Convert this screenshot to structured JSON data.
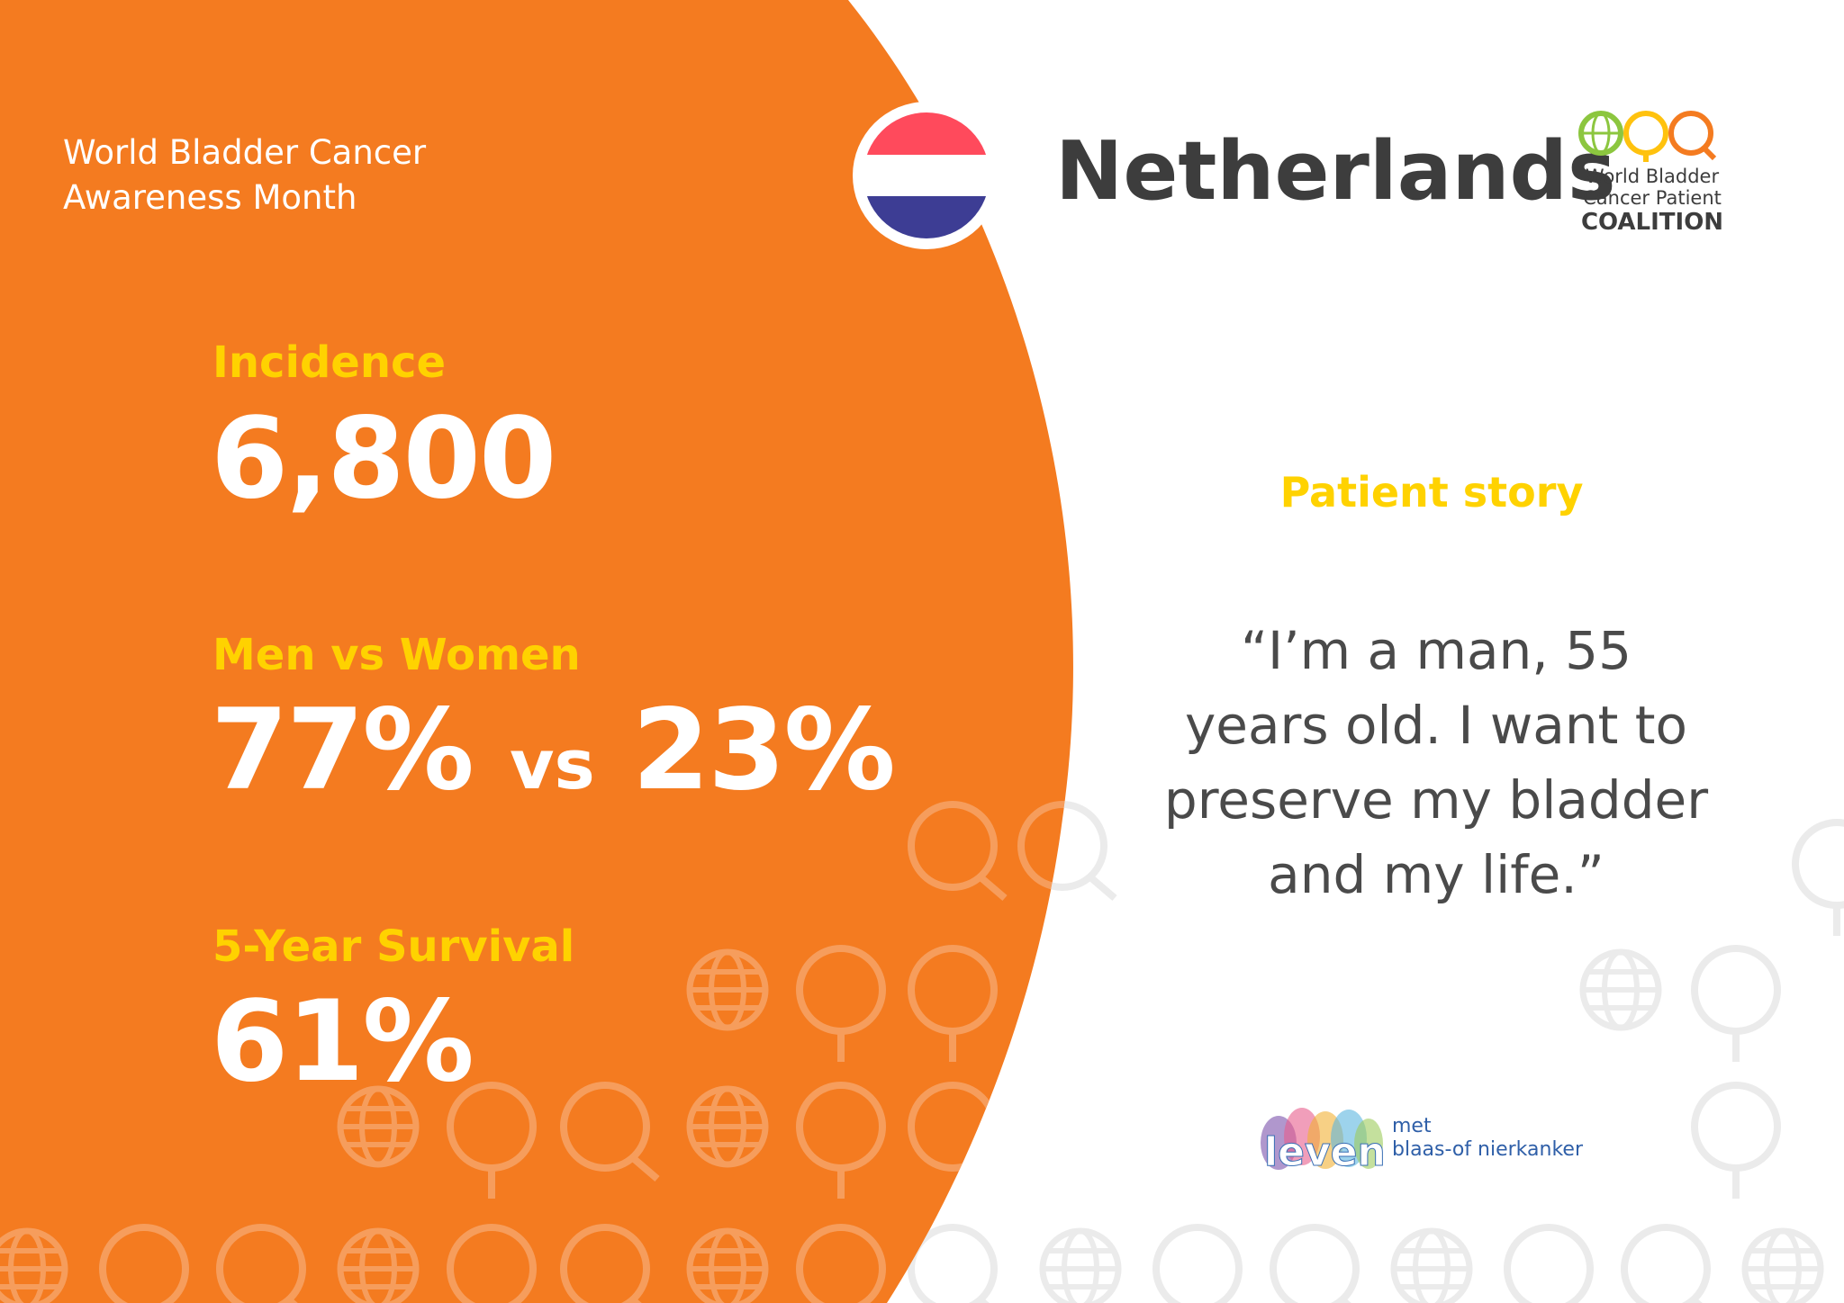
{
  "campaign": {
    "line1": "World Bladder Cancer",
    "line2": "Awareness Month"
  },
  "country": {
    "name": "Netherlands",
    "flag_icon": "netherlands-flag-icon"
  },
  "coalition_logo": {
    "line1": "World Bladder",
    "line2": "Cancer Patient",
    "line3": "COALITION",
    "icon": "coalition-logo-icon"
  },
  "stats": {
    "incidence": {
      "label": "Incidence",
      "value": "6,800"
    },
    "gender": {
      "label": "Men vs Women",
      "men": "77%",
      "vs": "vs",
      "women": "23%"
    },
    "survival": {
      "label": "5-Year Survival",
      "value": "61%"
    }
  },
  "story": {
    "label": "Patient story",
    "quote_line1": "“I’m a man, 55",
    "quote_line2": "years old. I want to",
    "quote_line3": "preserve my bladder",
    "quote_line4": "and my life.”"
  },
  "partner_logo": {
    "word": "leven",
    "line1": "met",
    "line2": "blaas-of nierkanker"
  },
  "colors": {
    "orange": "#F47B20",
    "yellow": "#FFD200",
    "text_dark": "#3d3d3d",
    "flag_red": "#FF4A5C",
    "flag_blue": "#3D3D94",
    "logo_green": "#8CC63F",
    "logo_yellow": "#FFC20E",
    "logo_orange": "#F47B20"
  }
}
